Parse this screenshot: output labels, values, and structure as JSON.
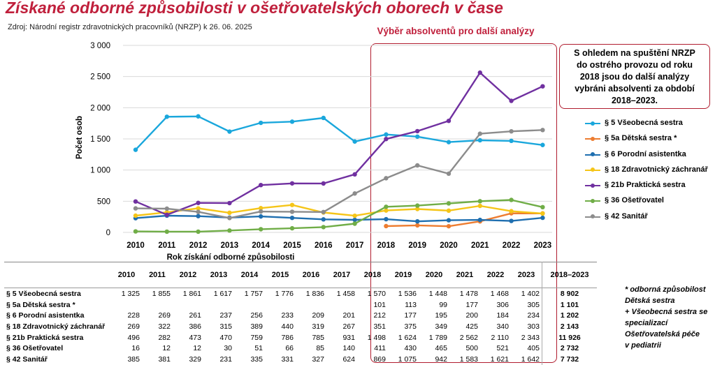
{
  "title": "Získané odborné způsobilosti v ošetřovatelských oborech v čase",
  "source": "Zdroj: Národní registr zdravotnických pracovníků (NRZP) k 26. 06. 2025",
  "selection_label": "Výběr absolventů pro další analýzy",
  "note_lines": [
    "S ohledem na spuštění NRZP",
    "do ostrého provozu od roku",
    "2018 jsou do další analýzy",
    "vybráni absolventi za období",
    "2018–2023."
  ],
  "footnote_lines": [
    "* odborná způsobilost",
    "Dětská sestra",
    "+ Všeobecná sestra se",
    "specializací",
    "Ošetřovatelská péče",
    "v pediatrii"
  ],
  "table": {
    "total_header": "2018–2023",
    "rows": [
      {
        "label": "§ 5 Všeobecná sestra",
        "cells": [
          "1 325",
          "1 855",
          "1 861",
          "1 617",
          "1 757",
          "1 776",
          "1 836",
          "1 458",
          "1 570",
          "1 536",
          "1 448",
          "1 478",
          "1 468",
          "1 402"
        ],
        "total": "8 902"
      },
      {
        "label": "§ 5a Dětská sestra *",
        "cells": [
          "",
          "",
          "",
          "",
          "",
          "",
          "",
          "",
          "101",
          "113",
          "99",
          "177",
          "306",
          "305"
        ],
        "total": "1 101"
      },
      {
        "label": "§ 6 Porodní asistentka",
        "cells": [
          "228",
          "269",
          "261",
          "237",
          "256",
          "233",
          "209",
          "201",
          "212",
          "177",
          "195",
          "200",
          "184",
          "234"
        ],
        "total": "1 202"
      },
      {
        "label": "§ 18 Zdravotnický záchranář",
        "cells": [
          "269",
          "322",
          "386",
          "315",
          "389",
          "440",
          "319",
          "267",
          "351",
          "375",
          "349",
          "425",
          "340",
          "303"
        ],
        "total": "2 143"
      },
      {
        "label": "§ 21b Praktická sestra",
        "cells": [
          "496",
          "282",
          "473",
          "470",
          "759",
          "786",
          "785",
          "931",
          "1 498",
          "1 624",
          "1 789",
          "2 562",
          "2 110",
          "2 343"
        ],
        "total": "11 926"
      },
      {
        "label": "§ 36 Ošetřovatel",
        "cells": [
          "16",
          "12",
          "12",
          "30",
          "51",
          "66",
          "85",
          "140",
          "411",
          "430",
          "465",
          "500",
          "521",
          "405"
        ],
        "total": "2 732"
      },
      {
        "label": "§ 42 Sanitář",
        "cells": [
          "385",
          "381",
          "329",
          "231",
          "335",
          "331",
          "327",
          "624",
          "869",
          "1 075",
          "942",
          "1 583",
          "1 621",
          "1 642"
        ],
        "total": "7 732"
      }
    ]
  },
  "chart_data": {
    "type": "line",
    "x": [
      2010,
      2011,
      2012,
      2013,
      2014,
      2015,
      2016,
      2017,
      2018,
      2019,
      2020,
      2021,
      2022,
      2023
    ],
    "xlabel": "Rok získání odborné způsobilosti",
    "ylabel": "Počet osob",
    "ylim": [
      0,
      3000
    ],
    "yticks": [
      0,
      500,
      1000,
      1500,
      2000,
      2500,
      3000
    ],
    "ytick_labels": [
      "0",
      "500",
      "1 000",
      "1 500",
      "2 000",
      "2 500",
      "3 000"
    ],
    "grid": true,
    "legend_position": "right",
    "series": [
      {
        "name": "§ 5 Všeobecná sestra",
        "color": "#1aa7dc",
        "values": [
          1325,
          1855,
          1861,
          1617,
          1757,
          1776,
          1836,
          1458,
          1570,
          1536,
          1448,
          1478,
          1468,
          1402
        ]
      },
      {
        "name": "§ 5a Dětská sestra *",
        "color": "#ed7d31",
        "values": [
          null,
          null,
          null,
          null,
          null,
          null,
          null,
          null,
          101,
          113,
          99,
          177,
          306,
          305
        ]
      },
      {
        "name": "§ 6 Porodní asistentka",
        "color": "#1f6fb0",
        "values": [
          228,
          269,
          261,
          237,
          256,
          233,
          209,
          201,
          212,
          177,
          195,
          200,
          184,
          234
        ]
      },
      {
        "name": "§ 18 Zdravotnický záchranář",
        "color": "#f5c518",
        "values": [
          269,
          322,
          386,
          315,
          389,
          440,
          319,
          267,
          351,
          375,
          349,
          425,
          340,
          303
        ]
      },
      {
        "name": "§ 21b Praktická sestra",
        "color": "#7030a0",
        "values": [
          496,
          282,
          473,
          470,
          759,
          786,
          785,
          931,
          1498,
          1624,
          1789,
          2562,
          2110,
          2343
        ]
      },
      {
        "name": "§ 36 Ošetřovatel",
        "color": "#70ad47",
        "values": [
          16,
          12,
          12,
          30,
          51,
          66,
          85,
          140,
          411,
          430,
          465,
          500,
          521,
          405
        ]
      },
      {
        "name": "§ 42 Sanitář",
        "color": "#8c8c8c",
        "values": [
          385,
          381,
          329,
          231,
          335,
          331,
          327,
          624,
          869,
          1075,
          942,
          1583,
          1621,
          1642
        ]
      }
    ]
  }
}
